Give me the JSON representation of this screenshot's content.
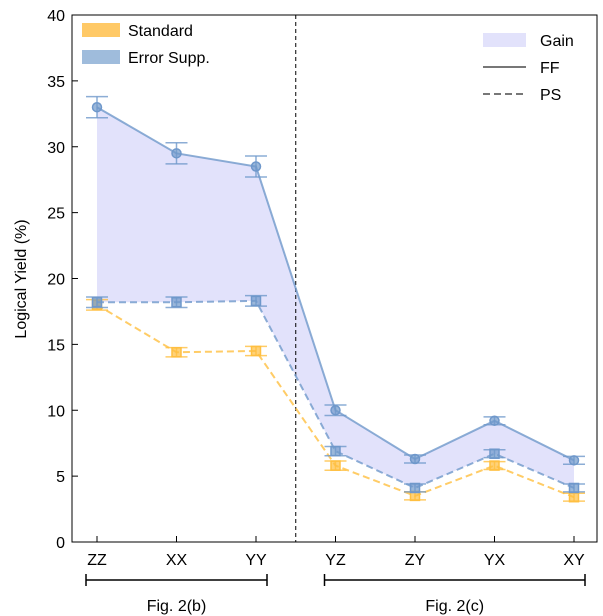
{
  "chart_data": {
    "type": "line",
    "ylabel": "Logical Yield (%)",
    "ylim": [
      0,
      40
    ],
    "yticks": [
      0,
      5,
      10,
      15,
      20,
      25,
      30,
      35,
      40
    ],
    "categories": [
      "ZZ",
      "XX",
      "YY",
      "YZ",
      "ZY",
      "YX",
      "XY"
    ],
    "groups": [
      {
        "label": "Fig. 2(b)",
        "from": "ZZ",
        "to": "YY"
      },
      {
        "label": "Fig. 2(c)",
        "from": "YZ",
        "to": "XY"
      }
    ],
    "divider_between": [
      "YY",
      "YZ"
    ],
    "legend_left": [
      {
        "label": "Standard",
        "color": "#ffc966"
      },
      {
        "label": "Error Supp.",
        "color": "#9fbcdc"
      }
    ],
    "legend_right": [
      {
        "label": "Gain",
        "color": "#e2e2fb"
      },
      {
        "label": "FF",
        "style": "solid"
      },
      {
        "label": "PS",
        "style": "dashed"
      }
    ],
    "series": [
      {
        "name": "Error Supp.",
        "style": "FF",
        "color": "#6f98cb",
        "values": [
          33.0,
          29.5,
          28.5,
          10.0,
          6.3,
          9.2,
          6.2
        ],
        "err": [
          0.8,
          0.8,
          0.8,
          0.4,
          0.3,
          0.3,
          0.3
        ]
      },
      {
        "name": "Error Supp.",
        "style": "PS",
        "color": "#6f98cb",
        "values": [
          18.2,
          18.2,
          18.3,
          6.9,
          4.1,
          6.7,
          4.1
        ],
        "err": [
          0.4,
          0.4,
          0.4,
          0.35,
          0.3,
          0.3,
          0.3
        ]
      },
      {
        "name": "Standard",
        "style": "PS",
        "color": "#ffbf40",
        "values": [
          18.0,
          14.4,
          14.5,
          5.8,
          3.5,
          5.8,
          3.4
        ],
        "err": [
          0.4,
          0.35,
          0.35,
          0.35,
          0.3,
          0.3,
          0.3
        ]
      }
    ],
    "gain_fill": {
      "between": [
        "Error Supp. FF",
        "Error Supp. PS"
      ],
      "color": "#e2e2fb"
    }
  }
}
